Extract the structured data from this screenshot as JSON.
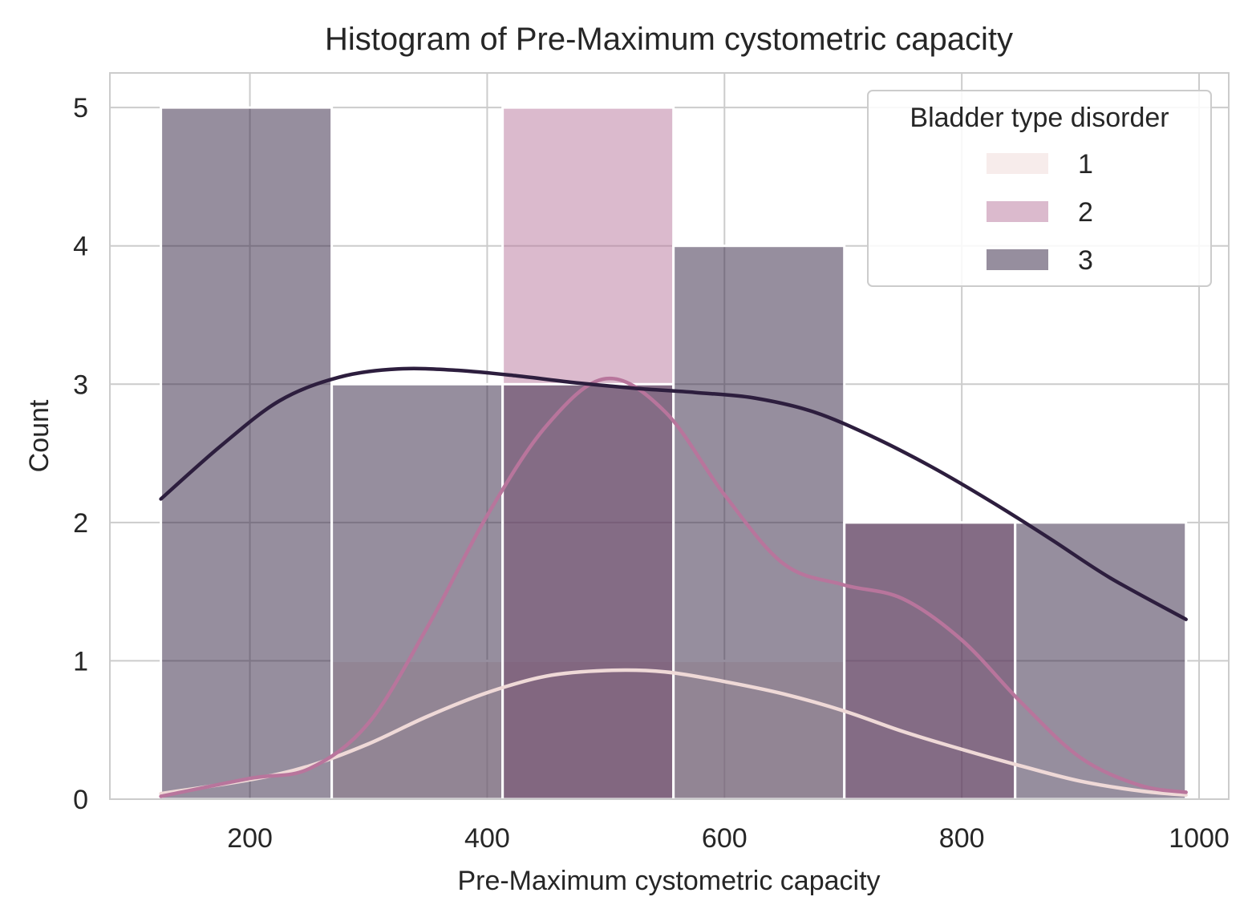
{
  "chart_data": {
    "type": "bar",
    "title": "Histogram of Pre-Maximum cystometric capacity",
    "xlabel": "Pre-Maximum cystometric capacity",
    "ylabel": "Count",
    "xlim": [
      82,
      1025
    ],
    "ylim": [
      0,
      5.25
    ],
    "xticks": [
      200,
      400,
      600,
      800,
      1000
    ],
    "yticks": [
      0,
      1,
      2,
      3,
      4,
      5
    ],
    "grid": true,
    "bin_edges": [
      125,
      269,
      413,
      557,
      701,
      845,
      989
    ],
    "stacked": false,
    "legend": {
      "title": "Bladder type disorder",
      "placement": "top-right",
      "entries": [
        "1",
        "2",
        "3"
      ]
    },
    "series": [
      {
        "name": "1",
        "color": "#efd9d7",
        "counts": [
          0,
          1,
          1,
          1,
          0,
          0
        ],
        "kde": {
          "x": [
            125,
            200,
            250,
            300,
            350,
            400,
            450,
            500,
            550,
            600,
            650,
            700,
            750,
            800,
            850,
            900,
            950,
            989
          ],
          "y": [
            0.04,
            0.14,
            0.24,
            0.4,
            0.6,
            0.77,
            0.89,
            0.93,
            0.92,
            0.85,
            0.76,
            0.64,
            0.49,
            0.36,
            0.24,
            0.13,
            0.06,
            0.03
          ]
        }
      },
      {
        "name": "2",
        "color": "#b8759c",
        "counts": [
          0,
          0,
          5,
          0,
          2,
          0
        ],
        "kde": {
          "x": [
            125,
            200,
            250,
            300,
            350,
            400,
            450,
            500,
            550,
            600,
            650,
            700,
            750,
            800,
            850,
            900,
            950,
            989
          ],
          "y": [
            0.02,
            0.15,
            0.22,
            0.55,
            1.25,
            2.05,
            2.7,
            3.04,
            2.8,
            2.2,
            1.7,
            1.55,
            1.45,
            1.15,
            0.7,
            0.3,
            0.1,
            0.05
          ]
        }
      },
      {
        "name": "3",
        "color": "#2d1e3e",
        "counts": [
          5,
          3,
          3,
          4,
          2,
          2
        ],
        "kde": {
          "x": [
            125,
            175,
            225,
            275,
            325,
            375,
            425,
            475,
            525,
            575,
            625,
            675,
            725,
            775,
            825,
            875,
            925,
            989
          ],
          "y": [
            2.17,
            2.55,
            2.88,
            3.05,
            3.11,
            3.1,
            3.06,
            3.01,
            2.97,
            2.94,
            2.9,
            2.8,
            2.62,
            2.4,
            2.15,
            1.88,
            1.6,
            1.3
          ]
        }
      }
    ]
  }
}
